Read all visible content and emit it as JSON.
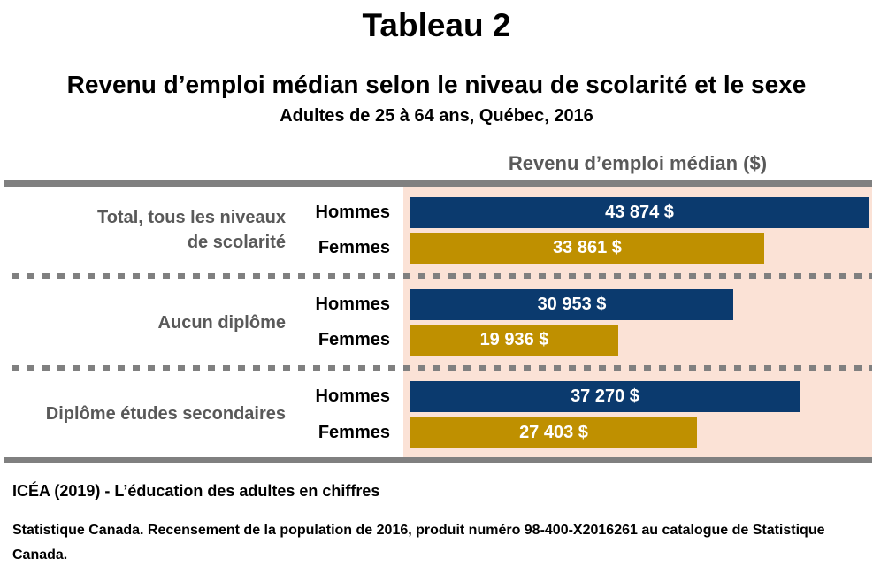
{
  "header": {
    "title": "Tableau 2",
    "subtitle": "Revenu d’emploi médian selon le niveau de scolarité et le sexe",
    "subsubtitle": "Adultes de 25 à 64 ans, Québec, 2016"
  },
  "chart_data": {
    "type": "bar",
    "orientation": "horizontal",
    "value_header": "Revenu d’emploi médian ($)",
    "groups": [
      {
        "label_line1": "Total, tous les niveaux",
        "label_line2": "de scolarité",
        "rows": [
          {
            "sex": "Hommes",
            "value": 43874,
            "value_label": "43 874 $"
          },
          {
            "sex": "Femmes",
            "value": 33861,
            "value_label": "33 861 $"
          }
        ]
      },
      {
        "label_line1": "Aucun diplôme",
        "label_line2": "",
        "rows": [
          {
            "sex": "Hommes",
            "value": 30953,
            "value_label": "30 953 $"
          },
          {
            "sex": "Femmes",
            "value": 19936,
            "value_label": "19 936 $"
          }
        ]
      },
      {
        "label_line1": "Diplôme études secondaires",
        "label_line2": "",
        "rows": [
          {
            "sex": "Hommes",
            "value": 37270,
            "value_label": "37 270 $"
          },
          {
            "sex": "Femmes",
            "value": 27403,
            "value_label": "27 403 $"
          }
        ]
      }
    ],
    "colors": {
      "Hommes": "#0b3a6e",
      "Femmes": "#bf9000",
      "background": "#fbe2d6"
    },
    "xlim": [
      0,
      43874
    ]
  },
  "footer": {
    "source1": "ICÉA (2019) - L’éducation des adultes en chiffres",
    "source2": "Statistique Canada. Recensement de la population de 2016, produit numéro 98-400-X2016261 au catalogue de Statistique Canada."
  }
}
